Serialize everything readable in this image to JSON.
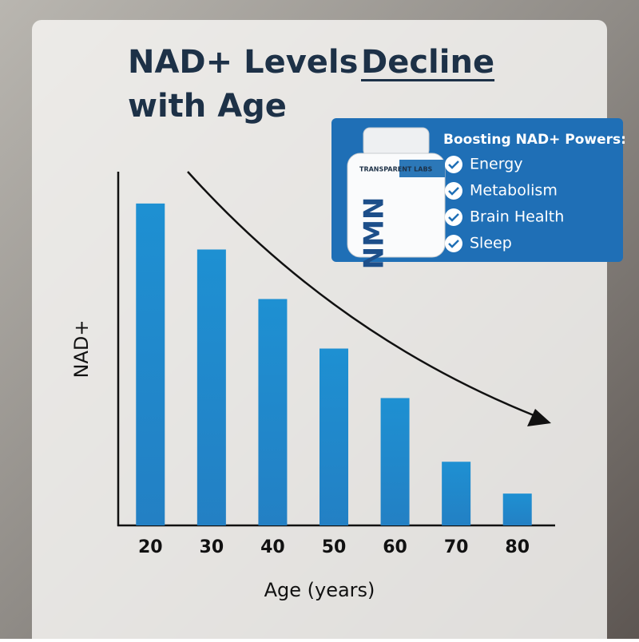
{
  "chart_data": {
    "type": "bar",
    "title": [
      "NAD+ Levels",
      "Decline",
      "with Age"
    ],
    "x_label": "Age (years)",
    "y_label": "NAD+",
    "categories": [
      "20",
      "30",
      "40",
      "50",
      "60",
      "70",
      "80"
    ],
    "values": [
      91,
      78,
      64,
      50,
      36,
      18,
      9
    ],
    "color": "#1e88cc",
    "ylim": [
      0,
      100
    ]
  },
  "callout": {
    "brand": "TRANSPARENT LABS",
    "product": "NMN",
    "heading": "Boosting NAD+ Powers:",
    "items": [
      "Energy",
      "Metabolism",
      "Brain Health",
      "Sleep"
    ]
  }
}
